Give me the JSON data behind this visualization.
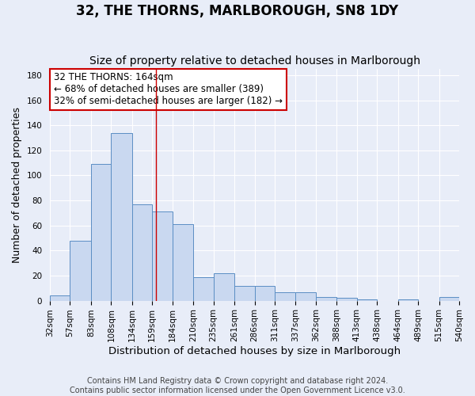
{
  "title": "32, THE THORNS, MARLBOROUGH, SN8 1DY",
  "subtitle": "Size of property relative to detached houses in Marlborough",
  "xlabel": "Distribution of detached houses by size in Marlborough",
  "ylabel": "Number of detached properties",
  "bin_edges": [
    32,
    57,
    83,
    108,
    134,
    159,
    184,
    210,
    235,
    261,
    286,
    311,
    337,
    362,
    388,
    413,
    438,
    464,
    489,
    515,
    540
  ],
  "bar_heights": [
    4,
    48,
    109,
    134,
    77,
    71,
    61,
    19,
    22,
    12,
    12,
    7,
    7,
    3,
    2,
    1,
    0,
    1,
    0,
    3
  ],
  "bar_color": "#c9d8f0",
  "bar_edge_color": "#5b8ec4",
  "property_size": 164,
  "red_line_color": "#cc0000",
  "annotation_text": "32 THE THORNS: 164sqm\n← 68% of detached houses are smaller (389)\n32% of semi-detached houses are larger (182) →",
  "annotation_box_color": "#ffffff",
  "annotation_box_edge_color": "#cc0000",
  "ylim": [
    0,
    185
  ],
  "yticks": [
    0,
    20,
    40,
    60,
    80,
    100,
    120,
    140,
    160,
    180
  ],
  "background_color": "#e8edf8",
  "grid_color": "#ffffff",
  "footer_text": "Contains HM Land Registry data © Crown copyright and database right 2024.\nContains public sector information licensed under the Open Government Licence v3.0.",
  "title_fontsize": 12,
  "subtitle_fontsize": 10,
  "xlabel_fontsize": 9.5,
  "ylabel_fontsize": 9,
  "tick_labelsize": 7.5,
  "annotation_fontsize": 8.5,
  "footer_fontsize": 7
}
